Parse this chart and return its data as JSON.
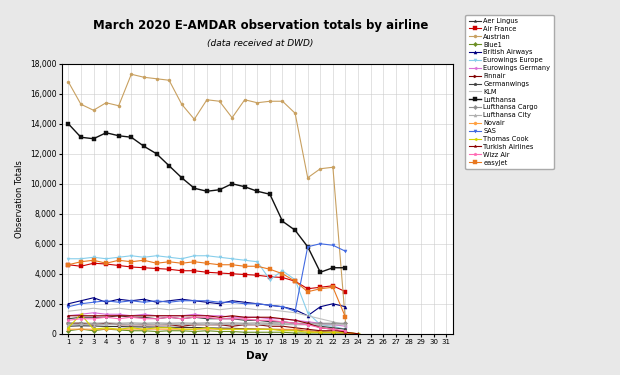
{
  "title": "March 2020 E-AMDAR observation totals by airline",
  "subtitle": "(data received at DWD)",
  "xlabel": "Day",
  "ylabel": "Observation Totals",
  "ylim": [
    0,
    18000
  ],
  "ytick_labels": [
    "0",
    "2,000",
    "4,000",
    "6,000",
    "8,000",
    "10,000",
    "12,000",
    "14,000",
    "16,000",
    "18,000"
  ],
  "yticks": [
    0,
    2000,
    4000,
    6000,
    8000,
    10000,
    12000,
    14000,
    16000,
    18000
  ],
  "days": [
    1,
    2,
    3,
    4,
    5,
    6,
    7,
    8,
    9,
    10,
    11,
    12,
    13,
    14,
    15,
    16,
    17,
    18,
    19,
    20,
    21,
    22,
    23,
    24,
    25,
    26,
    27,
    28,
    29,
    30,
    31
  ],
  "background_color": "#e8e8e8",
  "plot_bg_color": "#ffffff",
  "airlines": [
    {
      "name": "Aer Lingus",
      "color": "#333333",
      "marker": "*",
      "lw": 0.8,
      "data": [
        500,
        530,
        520,
        490,
        480,
        460,
        455,
        445,
        435,
        425,
        415,
        395,
        375,
        360,
        335,
        315,
        295,
        275,
        255,
        195,
        145,
        95,
        45,
        0,
        null,
        null,
        null,
        null,
        null,
        null,
        null
      ]
    },
    {
      "name": "Air France",
      "color": "#cc0000",
      "marker": "s",
      "lw": 0.8,
      "data": [
        4600,
        4500,
        4700,
        4650,
        4550,
        4450,
        4400,
        4350,
        4300,
        4200,
        4200,
        4100,
        4050,
        4000,
        3950,
        3900,
        3800,
        3750,
        3500,
        3000,
        3100,
        3200,
        2800,
        null,
        null,
        null,
        null,
        null,
        null,
        null,
        null
      ]
    },
    {
      "name": "Austrian",
      "color": "#c8a060",
      "marker": "o",
      "lw": 0.8,
      "data": [
        16800,
        15300,
        14900,
        15400,
        15200,
        17300,
        17100,
        17000,
        16900,
        15300,
        14300,
        15600,
        15500,
        14400,
        15600,
        15400,
        15500,
        15500,
        14700,
        10400,
        11000,
        11100,
        750,
        null,
        null,
        null,
        null,
        null,
        null,
        null,
        null
      ]
    },
    {
      "name": "Blue1",
      "color": "#6b8e23",
      "marker": "D",
      "lw": 0.8,
      "data": [
        200,
        310,
        200,
        310,
        255,
        200,
        200,
        150,
        200,
        200,
        150,
        200,
        150,
        150,
        100,
        100,
        100,
        100,
        50,
        50,
        50,
        50,
        50,
        0,
        null,
        null,
        null,
        null,
        null,
        null,
        null
      ]
    },
    {
      "name": "British Airways",
      "color": "#000080",
      "marker": "^",
      "lw": 0.8,
      "data": [
        2000,
        2200,
        2400,
        2100,
        2300,
        2200,
        2300,
        2100,
        2200,
        2300,
        2200,
        2100,
        2000,
        2200,
        2100,
        2000,
        1900,
        1800,
        1600,
        1200,
        1800,
        2000,
        1800,
        null,
        null,
        null,
        null,
        null,
        null,
        null,
        null
      ]
    },
    {
      "name": "Eurowings Europe",
      "color": "#87ceeb",
      "marker": "v",
      "lw": 0.8,
      "data": [
        5000,
        5000,
        5100,
        5000,
        5100,
        5200,
        5100,
        5200,
        5100,
        5000,
        5200,
        5200,
        5100,
        5000,
        4900,
        4800,
        3600,
        4200,
        3600,
        1400,
        600,
        500,
        300,
        null,
        null,
        null,
        null,
        null,
        null,
        null,
        null
      ]
    },
    {
      "name": "Eurowings Germany",
      "color": "#da70d6",
      "marker": "<",
      "lw": 0.8,
      "data": [
        1200,
        1300,
        1400,
        1300,
        1300,
        1200,
        1300,
        1200,
        1200,
        1200,
        1300,
        1200,
        1200,
        1100,
        1100,
        1100,
        1000,
        1000,
        900,
        800,
        700,
        600,
        500,
        null,
        null,
        null,
        null,
        null,
        null,
        null,
        null
      ]
    },
    {
      "name": "Finnair",
      "color": "#800000",
      "marker": ">",
      "lw": 0.8,
      "data": [
        700,
        700,
        600,
        700,
        600,
        600,
        600,
        600,
        600,
        500,
        600,
        600,
        600,
        500,
        600,
        600,
        500,
        500,
        400,
        300,
        200,
        200,
        150,
        null,
        null,
        null,
        null,
        null,
        null,
        null,
        null
      ]
    },
    {
      "name": "Germanwings",
      "color": "#404040",
      "marker": "p",
      "lw": 0.8,
      "data": [
        1000,
        1100,
        1100,
        1100,
        1200,
        1100,
        1100,
        1000,
        1100,
        1000,
        1100,
        1000,
        1000,
        1000,
        900,
        900,
        800,
        800,
        700,
        600,
        500,
        400,
        300,
        null,
        null,
        null,
        null,
        null,
        null,
        null,
        null
      ]
    },
    {
      "name": "KLM",
      "color": "#c0c0c0",
      "marker": null,
      "lw": 0.8,
      "data": [
        1500,
        1600,
        1700,
        1600,
        1700,
        1600,
        1600,
        1700,
        1600,
        1700,
        1600,
        1700,
        1600,
        1700,
        1700,
        1600,
        1600,
        1500,
        1400,
        1200,
        1000,
        800,
        600,
        null,
        null,
        null,
        null,
        null,
        null,
        null,
        null
      ]
    },
    {
      "name": "Lufthansa",
      "color": "#111111",
      "marker": "s",
      "lw": 1.0,
      "data": [
        14000,
        13100,
        13000,
        13400,
        13200,
        13100,
        12500,
        12000,
        11200,
        10400,
        9700,
        9500,
        9600,
        10000,
        9800,
        9500,
        9300,
        7500,
        6900,
        5800,
        4100,
        4400,
        4400,
        null,
        null,
        null,
        null,
        null,
        null,
        null,
        null
      ]
    },
    {
      "name": "Lufthansa Cargo",
      "color": "#909090",
      "marker": "D",
      "lw": 0.8,
      "data": [
        700,
        720,
        700,
        720,
        700,
        720,
        700,
        720,
        700,
        720,
        700,
        720,
        700,
        720,
        700,
        720,
        700,
        720,
        700,
        700,
        700,
        700,
        700,
        null,
        null,
        null,
        null,
        null,
        null,
        null,
        null
      ]
    },
    {
      "name": "Lufthansa City",
      "color": "#b0b0b0",
      "marker": "^",
      "lw": 0.8,
      "data": [
        600,
        620,
        600,
        620,
        600,
        620,
        600,
        620,
        600,
        620,
        600,
        620,
        600,
        620,
        600,
        620,
        600,
        620,
        600,
        600,
        600,
        600,
        600,
        null,
        null,
        null,
        null,
        null,
        null,
        null,
        null
      ]
    },
    {
      "name": "Novair",
      "color": "#ffa040",
      "marker": "o",
      "lw": 0.8,
      "data": [
        300,
        310,
        300,
        310,
        300,
        310,
        300,
        310,
        300,
        310,
        300,
        310,
        300,
        310,
        300,
        310,
        300,
        300,
        290,
        200,
        100,
        100,
        50,
        0,
        null,
        null,
        null,
        null,
        null,
        null,
        null
      ]
    },
    {
      "name": "SAS",
      "color": "#4169e1",
      "marker": "v",
      "lw": 0.8,
      "data": [
        1800,
        2000,
        2100,
        2200,
        2100,
        2200,
        2100,
        2200,
        2100,
        2200,
        2200,
        2200,
        2100,
        2100,
        2000,
        2000,
        1900,
        1800,
        1500,
        5800,
        6000,
        5900,
        5500,
        null,
        null,
        null,
        null,
        null,
        null,
        null,
        null
      ]
    },
    {
      "name": "Thomas Cook",
      "color": "#d4d400",
      "marker": "<",
      "lw": 0.8,
      "data": [
        400,
        1300,
        300,
        400,
        300,
        400,
        300,
        400,
        400,
        300,
        300,
        400,
        300,
        300,
        300,
        300,
        300,
        200,
        200,
        100,
        100,
        100,
        100,
        0,
        null,
        null,
        null,
        null,
        null,
        null,
        null
      ]
    },
    {
      "name": "Turkish Airlines",
      "color": "#8b0000",
      "marker": "*",
      "lw": 0.8,
      "data": [
        1200,
        1200,
        1200,
        1200,
        1200,
        1200,
        1200,
        1200,
        1200,
        1200,
        1200,
        1200,
        1100,
        1200,
        1100,
        1100,
        1100,
        1000,
        900,
        700,
        400,
        300,
        100,
        0,
        null,
        null,
        null,
        null,
        null,
        null,
        null
      ]
    },
    {
      "name": "Wizz Air",
      "color": "#ff69b4",
      "marker": "p",
      "lw": 0.8,
      "data": [
        900,
        1000,
        1000,
        1100,
        1000,
        1100,
        1000,
        1000,
        1100,
        1000,
        1100,
        1100,
        1000,
        1000,
        1000,
        900,
        900,
        800,
        700,
        600,
        400,
        300,
        200,
        null,
        null,
        null,
        null,
        null,
        null,
        null,
        null
      ]
    },
    {
      "name": "easyJet",
      "color": "#e87820",
      "marker": "s",
      "lw": 0.8,
      "data": [
        4600,
        4800,
        4900,
        4700,
        4900,
        4800,
        4900,
        4700,
        4800,
        4700,
        4800,
        4700,
        4600,
        4600,
        4500,
        4500,
        4300,
        4000,
        3500,
        2800,
        3000,
        3100,
        1100,
        null,
        null,
        null,
        null,
        null,
        null,
        null,
        null
      ]
    }
  ]
}
